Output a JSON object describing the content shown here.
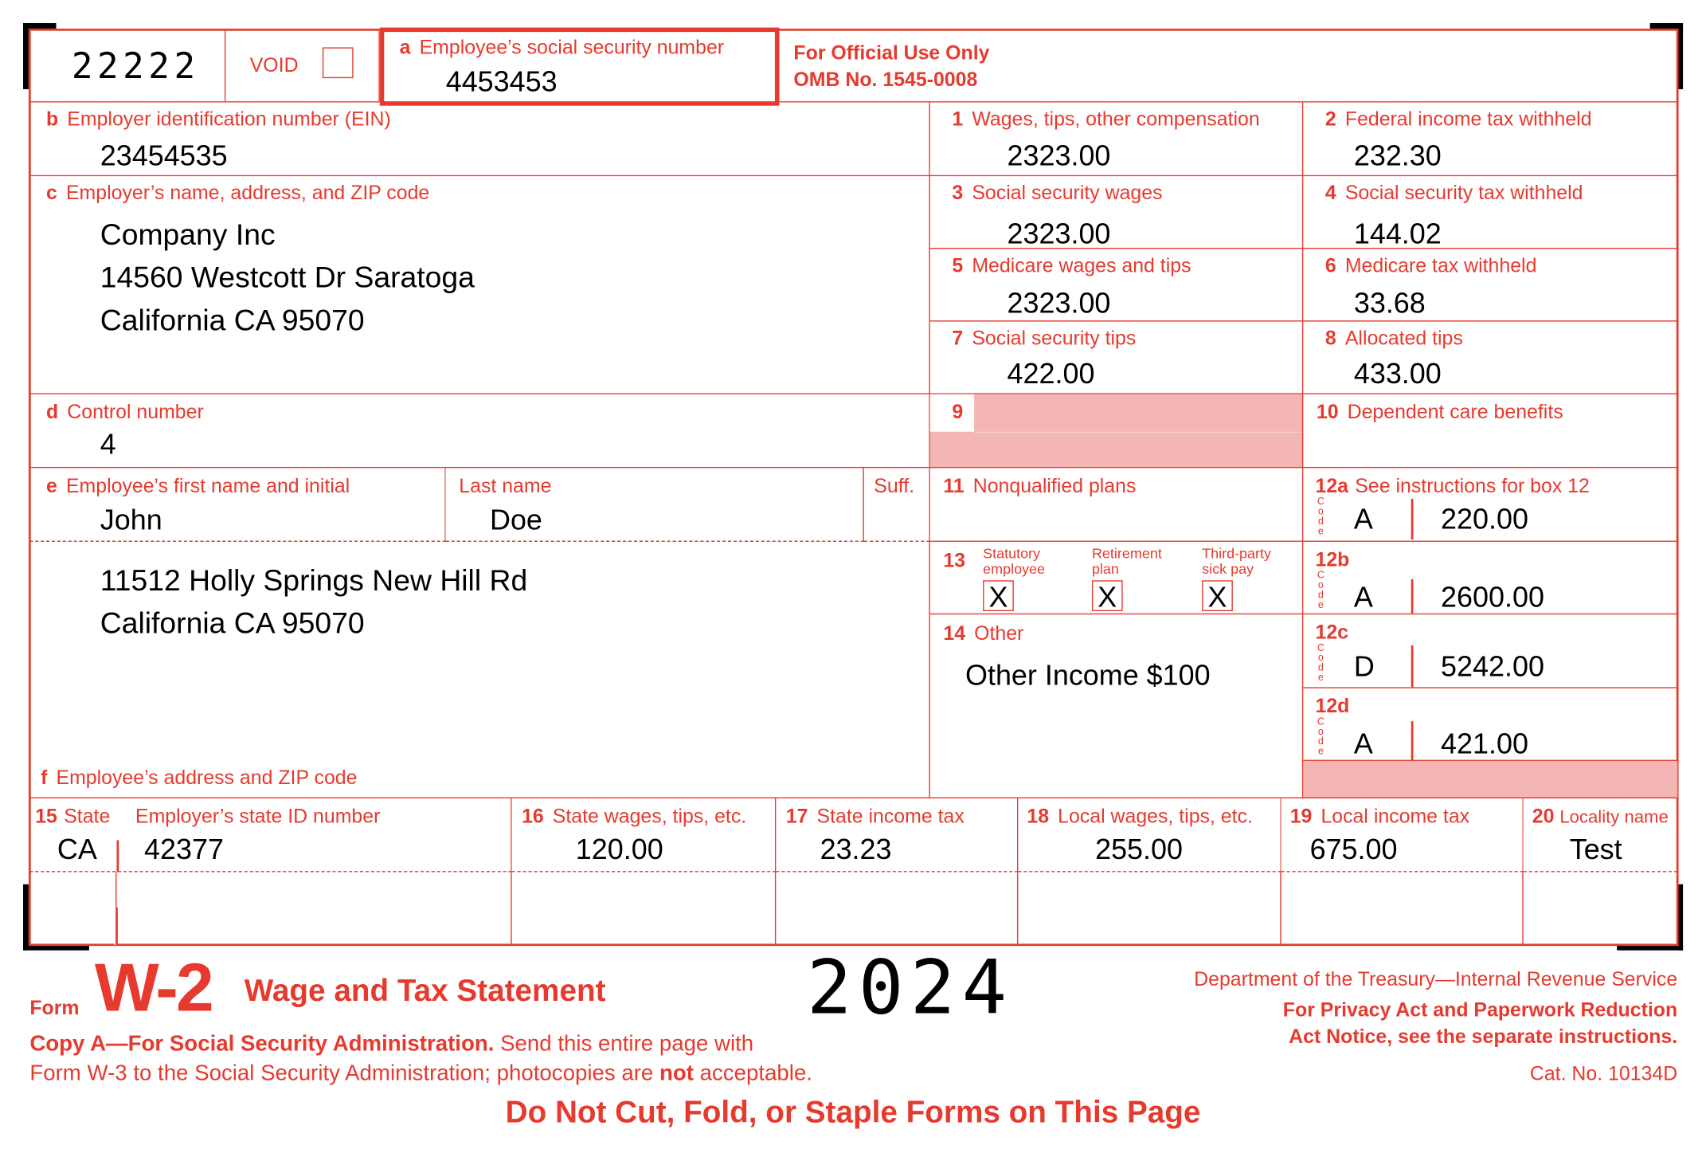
{
  "form_code": "22222",
  "void_label": "VOID",
  "void_checked": false,
  "a": {
    "letter": "a",
    "label": "Employee’s social security number",
    "value": "4453453"
  },
  "official": {
    "line1": "For Official Use Only",
    "line2": "OMB No. 1545-0008"
  },
  "b": {
    "letter": "b",
    "label": "Employer identification number (EIN)",
    "value": "23454535"
  },
  "c": {
    "letter": "c",
    "label": "Employer’s name, address, and ZIP code",
    "lines": [
      "Company Inc",
      "14560 Westcott Dr Saratoga",
      "California CA 95070"
    ]
  },
  "d": {
    "letter": "d",
    "label": "Control number",
    "value": "4"
  },
  "e": {
    "letter": "e",
    "label": "Employee’s first name and initial",
    "first": "John",
    "last_label": "Last name",
    "last": "Doe",
    "suff_label": "Suff."
  },
  "f": {
    "letter": "f",
    "label": "Employee’s address and ZIP code",
    "lines": [
      "11512 Holly Springs New Hill Rd",
      "California CA 95070"
    ]
  },
  "boxes": {
    "b1": {
      "num": "1",
      "label": "Wages, tips, other compensation",
      "value": "2323.00"
    },
    "b2": {
      "num": "2",
      "label": "Federal income tax withheld",
      "value": "232.30"
    },
    "b3": {
      "num": "3",
      "label": "Social security wages",
      "value": "2323.00"
    },
    "b4": {
      "num": "4",
      "label": "Social security tax withheld",
      "value": "144.02"
    },
    "b5": {
      "num": "5",
      "label": "Medicare wages and tips",
      "value": "2323.00"
    },
    "b6": {
      "num": "6",
      "label": "Medicare tax withheld",
      "value": "33.68"
    },
    "b7": {
      "num": "7",
      "label": "Social security tips",
      "value": "422.00"
    },
    "b8": {
      "num": "8",
      "label": "Allocated tips",
      "value": "433.00"
    },
    "b9": {
      "num": "9"
    },
    "b10": {
      "num": "10",
      "label": "Dependent care benefits",
      "value": ""
    },
    "b11": {
      "num": "11",
      "label": "Nonqualified plans",
      "value": ""
    },
    "b13": {
      "num": "13",
      "statutory": "Statutory employee",
      "retirement": "Retirement plan",
      "thirdparty": "Third-party sick pay",
      "statutory_mark": "X",
      "retirement_mark": "X",
      "thirdparty_mark": "X"
    },
    "b14": {
      "num": "14",
      "label": "Other",
      "value": "Other Income $100"
    },
    "b12a": {
      "num": "12a",
      "label": "See instructions for box 12",
      "code": "A",
      "value": "220.00"
    },
    "b12b": {
      "num": "12b",
      "code": "A",
      "value": "2600.00"
    },
    "b12c": {
      "num": "12c",
      "code": "D",
      "value": "5242.00"
    },
    "b12d": {
      "num": "12d",
      "code": "A",
      "value": "421.00"
    },
    "code_word": "Code"
  },
  "state_row": {
    "b15": {
      "num": "15",
      "label": "State",
      "id_label": "Employer’s state ID number",
      "state": "CA",
      "id": "42377"
    },
    "b16": {
      "num": "16",
      "label": "State wages, tips, etc.",
      "value": "120.00"
    },
    "b17": {
      "num": "17",
      "label": "State income tax",
      "value": "23.23"
    },
    "b18": {
      "num": "18",
      "label": "Local wages, tips, etc.",
      "value": "255.00"
    },
    "b19": {
      "num": "19",
      "label": "Local income tax",
      "value": "675.00"
    },
    "b20": {
      "num": "20",
      "label": "Locality name",
      "value": "Test"
    }
  },
  "footer": {
    "form_word": "Form",
    "form_name": "W-2",
    "title": "Wage and Tax Statement",
    "year": "2024",
    "dept": "Department of the Treasury—Internal Revenue Service",
    "privacy1": "For Privacy Act and Paperwork Reduction",
    "privacy2": "Act Notice, see the separate instructions.",
    "cat": "Cat. No. 10134D",
    "copy_bold": "Copy A—For Social Security Administration.",
    "copy_rest": " Send this entire page with",
    "copy2a": "Form W-3 to the Social Security Administration; photocopies are ",
    "copy2b": "not",
    "copy2c": " acceptable.",
    "warning": "Do Not Cut, Fold, or Staple Forms on This Page"
  },
  "colors": {
    "form_red": "#e63a2e",
    "shade": "#f4b6b4"
  }
}
